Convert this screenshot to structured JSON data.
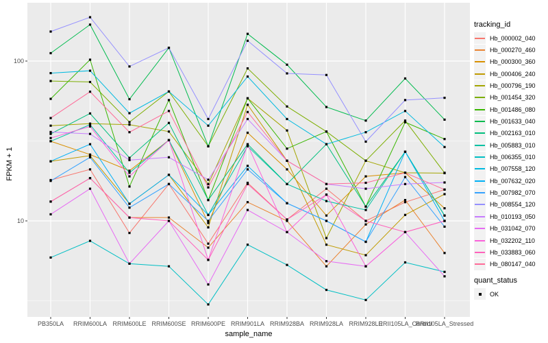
{
  "figure": {
    "y_axis": {
      "label": "FPKM + 1",
      "scale": "log10",
      "ticks": [
        {
          "label": "100",
          "value": 100
        },
        {
          "label": "10",
          "value": 10
        }
      ]
    },
    "x_axis": {
      "label": "sample_name"
    },
    "legend": {
      "tracking_title": "tracking_id",
      "quant_title": "quant_status",
      "quant_items": [
        {
          "label": "OK",
          "shape": "filled-black-square"
        }
      ]
    }
  },
  "chart_data": {
    "type": "line",
    "title": "",
    "xlabel": "sample_name",
    "ylabel": "FPKM + 1",
    "y_scale": "log10",
    "ylim": [
      2.5,
      210
    ],
    "grid": "major-and-minor-white-on-gray",
    "legend_position": "right",
    "point_shape": "filled-black-square",
    "panel_background": "#EBEBEB",
    "gridline_color": "#FFFFFF",
    "x": [
      "PB350LA",
      "RRIM600LA",
      "RRIM600LE",
      "RRIM600SE",
      "RRIM600PE",
      "RRIM901LA",
      "RRIM928BA",
      "RRIM928LA",
      "RRIM928LE",
      "RRII105LA_Control",
      "RRII105LA_Stressed"
    ],
    "series": [
      {
        "name": "Hb_000002_040",
        "color": "#F8766D",
        "values": [
          18,
          21,
          8.4,
          17,
          7.2,
          17.3,
          10.2,
          15.9,
          10,
          13.1,
          15.7
        ]
      },
      {
        "name": "Hb_000270_460",
        "color": "#EA8331",
        "values": [
          13.2,
          18.5,
          10.5,
          10.5,
          6.8,
          13.1,
          10,
          5.2,
          9.5,
          13.5,
          6.3
        ]
      },
      {
        "name": "Hb_000300_360",
        "color": "#D89000",
        "values": [
          31.5,
          26,
          20.6,
          32,
          9.7,
          35.6,
          21,
          10.8,
          19,
          20,
          12
        ]
      },
      {
        "name": "Hb_000406_240",
        "color": "#C09B00",
        "values": [
          23.6,
          25.6,
          12.8,
          19.4,
          9.1,
          53.3,
          23.8,
          7.1,
          6.1,
          10.9,
          14.7
        ]
      },
      {
        "name": "Hb_000796_190",
        "color": "#A3A500",
        "values": [
          39.4,
          40.6,
          40,
          36.2,
          17,
          58.5,
          36.8,
          7.8,
          23.8,
          20,
          19.9
        ]
      },
      {
        "name": "Hb_001454_320",
        "color": "#7CAE00",
        "values": [
          75,
          74,
          41.5,
          64.5,
          29.3,
          90,
          52,
          36.2,
          23.8,
          42.4,
          20
        ]
      },
      {
        "name": "Hb_001486_080",
        "color": "#39B600",
        "values": [
          58,
          102,
          16.4,
          57,
          13.5,
          58.5,
          28.3,
          36.2,
          12.3,
          41.4,
          32.5
        ]
      },
      {
        "name": "Hb_001633_040",
        "color": "#00BB4E",
        "values": [
          112,
          169,
          57.7,
          121,
          29.3,
          148,
          94.9,
          51.6,
          42.4,
          77.8,
          43
        ]
      },
      {
        "name": "Hb_002163_010",
        "color": "#00BF7D",
        "values": [
          35,
          47,
          24.8,
          41,
          13.5,
          30.2,
          17,
          30.2,
          12.3,
          27.1,
          10.8
        ]
      },
      {
        "name": "Hb_005883_010",
        "color": "#00C1A3",
        "values": [
          31.5,
          40,
          20,
          32,
          10.9,
          29.3,
          17,
          13.3,
          11.7,
          27.1,
          10.8
        ]
      },
      {
        "name": "Hb_006355_010",
        "color": "#00BFC4",
        "values": [
          5.9,
          7.5,
          5.4,
          5.2,
          3,
          7.1,
          5.3,
          3.7,
          3.2,
          5.5,
          4.8
        ]
      },
      {
        "name": "Hb_007558_120",
        "color": "#00BAE0",
        "values": [
          84,
          87,
          47.2,
          64.5,
          39.4,
          80,
          43.4,
          30.2,
          35.9,
          48.7,
          29
        ]
      },
      {
        "name": "Hb_007632_020",
        "color": "#00B0F6",
        "values": [
          23.6,
          30.2,
          12.8,
          19.4,
          10.9,
          22.1,
          12.9,
          10,
          7.4,
          27.1,
          10
        ]
      },
      {
        "name": "Hb_007982_070",
        "color": "#35A2FF",
        "values": [
          17.8,
          25,
          12.1,
          17,
          10,
          21,
          12.9,
          10,
          7.4,
          18.8,
          9.2
        ]
      },
      {
        "name": "Hb_008554_120",
        "color": "#9590FF",
        "values": [
          153,
          188,
          92.5,
          121,
          43.4,
          134,
          83.7,
          81.8,
          31.3,
          57,
          58.9
        ]
      },
      {
        "name": "Hb_010193_050",
        "color": "#C77CFF",
        "values": [
          36,
          35,
          24,
          25,
          18.1,
          43.4,
          23.8,
          17,
          15.9,
          17,
          17.4
        ]
      },
      {
        "name": "Hb_031042_070",
        "color": "#E76BF3",
        "values": [
          11,
          15.9,
          5.4,
          10,
          4,
          11.7,
          8.5,
          5.6,
          5.2,
          8.5,
          4.5
        ]
      },
      {
        "name": "Hb_032202_110",
        "color": "#FA62DB",
        "values": [
          33,
          39,
          19,
          32,
          5.7,
          30,
          8.5,
          14.6,
          5.2,
          8.5,
          10
        ]
      },
      {
        "name": "Hb_033883_060",
        "color": "#FF62BC",
        "values": [
          13.2,
          18.5,
          10.5,
          10,
          5.7,
          17,
          10.2,
          14.6,
          10,
          8.5,
          10
        ]
      },
      {
        "name": "Hb_080147_040",
        "color": "#FF6A98",
        "values": [
          44,
          64.3,
          35.9,
          48.7,
          16.2,
          48,
          23.8,
          17,
          17.3,
          20,
          15.7
        ]
      }
    ]
  }
}
